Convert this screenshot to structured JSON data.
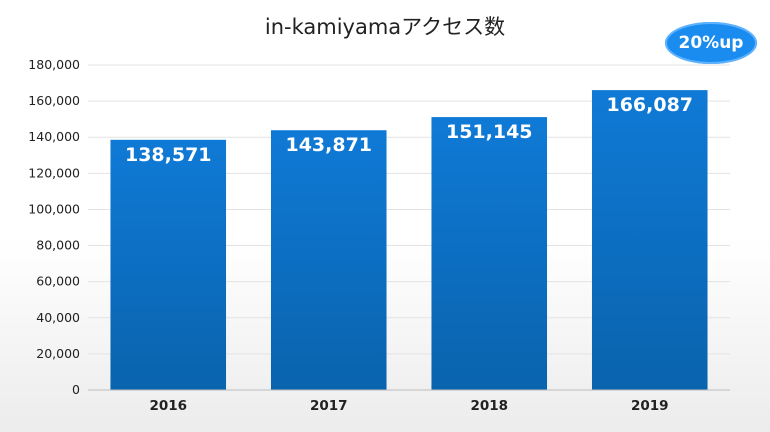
{
  "badge": {
    "text": "20%up",
    "color": "#1a8cf0"
  },
  "chart_data": {
    "type": "bar",
    "title": "in-kamiyamaアクセス数",
    "categories": [
      "2016",
      "2017",
      "2018",
      "2019"
    ],
    "values": [
      138571,
      143871,
      151145,
      166087
    ],
    "value_labels": [
      "138,571",
      "143,871",
      "151,145",
      "166,087"
    ],
    "y_ticks": [
      "0",
      "20,000",
      "40,000",
      "60,000",
      "80,000",
      "100,000",
      "120,000",
      "140,000",
      "160,000",
      "180,000"
    ],
    "xlabel": "",
    "ylabel": "",
    "ylim": [
      0,
      180000
    ],
    "grid": true,
    "bar_color": "#0a6fc2"
  }
}
